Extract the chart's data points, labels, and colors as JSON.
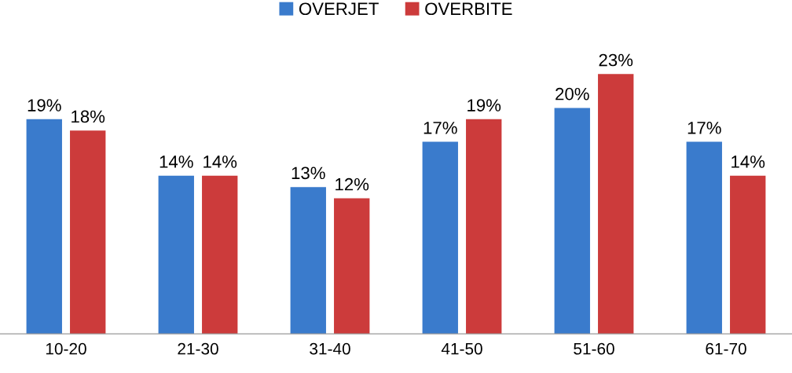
{
  "chart_data": {
    "type": "bar",
    "categories": [
      "10-20",
      "21-30",
      "31-40",
      "41-50",
      "51-60",
      "61-70"
    ],
    "series": [
      {
        "name": "OVERJET",
        "color": "#3a7bcc",
        "values": [
          19,
          14,
          13,
          17,
          20,
          17
        ],
        "value_labels": [
          "19%",
          "14%",
          "13%",
          "17%",
          "20%",
          "17%"
        ]
      },
      {
        "name": "OVERBITE",
        "color": "#cc3b3b",
        "values": [
          18,
          14,
          12,
          19,
          23,
          14
        ],
        "value_labels": [
          "18%",
          "14%",
          "12%",
          "19%",
          "23%",
          "14%"
        ]
      }
    ],
    "legend": "top",
    "grid": false
  }
}
